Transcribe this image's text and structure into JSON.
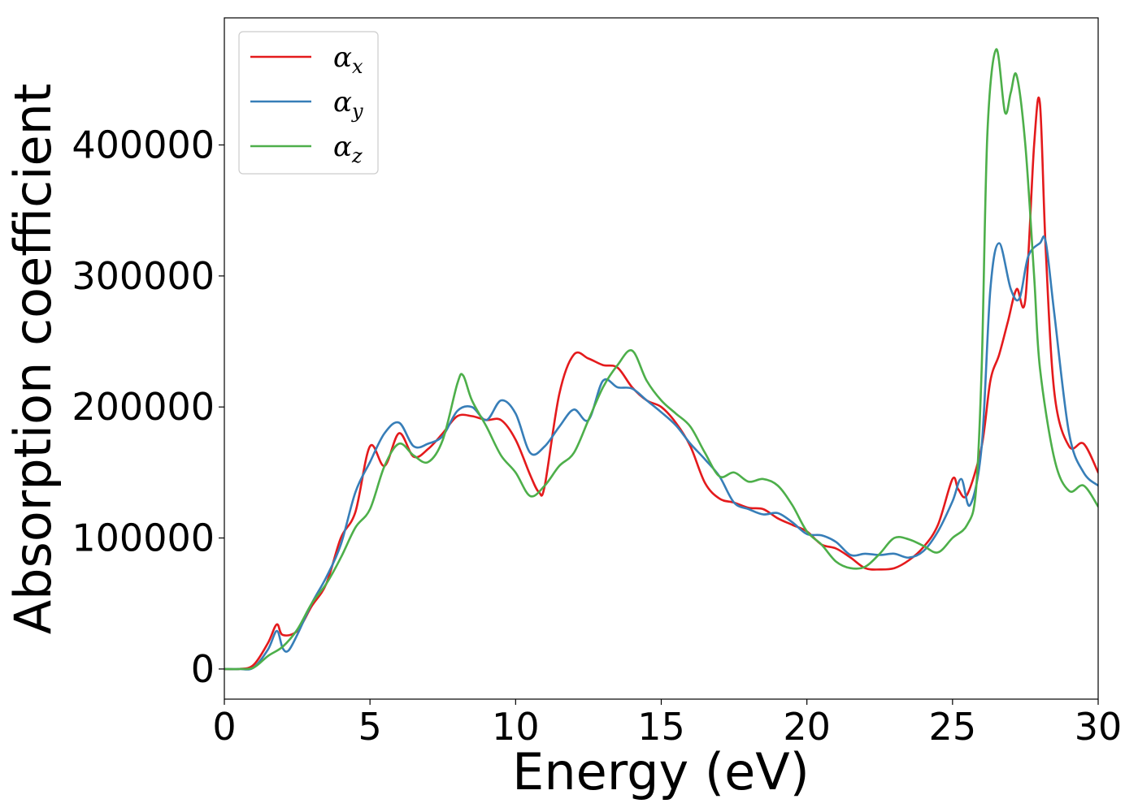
{
  "chart_data": {
    "type": "line",
    "xlabel": "Energy (eV)",
    "ylabel": "Absorption coefficient",
    "xlim": [
      0,
      30
    ],
    "ylim": [
      -23000,
      497000
    ],
    "xticks": [
      0,
      5,
      10,
      15,
      20,
      25,
      30
    ],
    "yticks": [
      0,
      100000,
      200000,
      300000,
      400000
    ],
    "xtick_labels": [
      "0",
      "5",
      "10",
      "15",
      "20",
      "25",
      "30"
    ],
    "ytick_labels": [
      "0",
      "100000",
      "200000",
      "300000",
      "400000"
    ],
    "grid": false,
    "legend_position": "top-left",
    "series": [
      {
        "name": "α_x",
        "legend_base": "α",
        "legend_sub": "x",
        "color": "#e41a1c",
        "x": [
          0,
          0.5,
          1.0,
          1.5,
          1.8,
          2.0,
          2.5,
          3.0,
          3.5,
          4.0,
          4.5,
          5.0,
          5.5,
          6.0,
          6.5,
          7.0,
          7.5,
          8.0,
          8.5,
          9.0,
          9.5,
          10.0,
          10.5,
          10.8,
          11.0,
          11.5,
          12.0,
          12.5,
          13.0,
          13.5,
          14.0,
          14.5,
          15.0,
          15.5,
          16.0,
          16.5,
          17.0,
          17.5,
          18.0,
          18.5,
          19.0,
          19.5,
          20.0,
          20.5,
          21.0,
          21.5,
          22.0,
          22.5,
          23.0,
          23.5,
          24.0,
          24.5,
          25.0,
          25.2,
          25.5,
          26.0,
          26.3,
          26.6,
          26.9,
          27.2,
          27.5,
          27.8,
          28.0,
          28.2,
          28.5,
          29.0,
          29.5,
          30.0
        ],
        "y": [
          0,
          0,
          3000,
          20000,
          34000,
          26000,
          29000,
          48000,
          65000,
          100000,
          120000,
          170000,
          155000,
          180000,
          162000,
          168000,
          180000,
          193000,
          193000,
          190000,
          190000,
          175000,
          148000,
          135000,
          140000,
          210000,
          240000,
          237000,
          232000,
          230000,
          215000,
          205000,
          200000,
          188000,
          170000,
          142000,
          130000,
          127000,
          123000,
          122000,
          115000,
          110000,
          105000,
          95000,
          92000,
          85000,
          77000,
          76000,
          77000,
          83000,
          93000,
          110000,
          145000,
          137000,
          133000,
          170000,
          220000,
          240000,
          265000,
          290000,
          282000,
          400000,
          432000,
          320000,
          210000,
          170000,
          172000,
          150000
        ]
      },
      {
        "name": "α_y",
        "legend_base": "α",
        "legend_sub": "y",
        "color": "#377eb8",
        "x": [
          0,
          0.5,
          1.0,
          1.5,
          1.8,
          2.0,
          2.2,
          2.5,
          3.0,
          3.5,
          4.0,
          4.5,
          5.0,
          5.5,
          6.0,
          6.5,
          7.0,
          7.5,
          8.0,
          8.5,
          9.0,
          9.5,
          10.0,
          10.5,
          11.0,
          11.5,
          12.0,
          12.5,
          13.0,
          13.5,
          14.0,
          14.5,
          15.0,
          15.5,
          16.0,
          16.5,
          17.0,
          17.5,
          18.0,
          18.5,
          19.0,
          19.5,
          20.0,
          20.5,
          21.0,
          21.5,
          22.0,
          22.5,
          23.0,
          23.5,
          24.0,
          24.5,
          25.0,
          25.3,
          25.6,
          26.0,
          26.3,
          26.6,
          27.0,
          27.3,
          27.6,
          28.0,
          28.2,
          28.5,
          29.0,
          29.5,
          30.0
        ],
        "y": [
          0,
          0,
          1000,
          15000,
          29000,
          16000,
          14000,
          26000,
          50000,
          70000,
          95000,
          135000,
          158000,
          180000,
          188000,
          170000,
          172000,
          178000,
          197000,
          200000,
          190000,
          205000,
          195000,
          165000,
          170000,
          185000,
          198000,
          190000,
          220000,
          215000,
          214000,
          205000,
          196000,
          186000,
          172000,
          160000,
          147000,
          127000,
          122000,
          118000,
          119000,
          112000,
          103000,
          102000,
          97000,
          87000,
          88000,
          87000,
          88000,
          85000,
          90000,
          105000,
          128000,
          145000,
          125000,
          170000,
          290000,
          325000,
          290000,
          283000,
          315000,
          325000,
          326000,
          270000,
          180000,
          150000,
          140000
        ]
      },
      {
        "name": "α_z",
        "legend_base": "α",
        "legend_sub": "z",
        "color": "#4daf4a",
        "x": [
          0,
          0.5,
          1.0,
          1.5,
          2.0,
          2.5,
          3.0,
          3.5,
          4.0,
          4.5,
          5.0,
          5.5,
          6.0,
          6.5,
          7.0,
          7.5,
          8.0,
          8.2,
          8.5,
          9.0,
          9.5,
          10.0,
          10.5,
          11.0,
          11.5,
          12.0,
          12.5,
          13.0,
          13.5,
          14.0,
          14.5,
          15.0,
          15.5,
          16.0,
          16.5,
          17.0,
          17.5,
          18.0,
          18.5,
          19.0,
          19.5,
          20.0,
          20.5,
          21.0,
          21.5,
          22.0,
          22.5,
          23.0,
          23.5,
          24.0,
          24.5,
          25.0,
          25.5,
          25.8,
          26.0,
          26.2,
          26.5,
          26.8,
          27.0,
          27.2,
          27.5,
          27.8,
          28.0,
          28.5,
          29.0,
          29.5,
          30.0
        ],
        "y": [
          0,
          0,
          1000,
          10000,
          17000,
          30000,
          50000,
          65000,
          85000,
          108000,
          122000,
          155000,
          172000,
          163000,
          158000,
          175000,
          218000,
          224000,
          205000,
          185000,
          163000,
          150000,
          132000,
          140000,
          155000,
          165000,
          190000,
          215000,
          232000,
          243000,
          220000,
          205000,
          195000,
          185000,
          165000,
          147000,
          150000,
          143000,
          145000,
          140000,
          125000,
          105000,
          95000,
          82000,
          77000,
          78000,
          88000,
          100000,
          99000,
          94000,
          89000,
          100000,
          110000,
          135000,
          230000,
          410000,
          473000,
          425000,
          440000,
          453000,
          400000,
          300000,
          230000,
          160000,
          136000,
          140000,
          124000
        ]
      }
    ]
  }
}
